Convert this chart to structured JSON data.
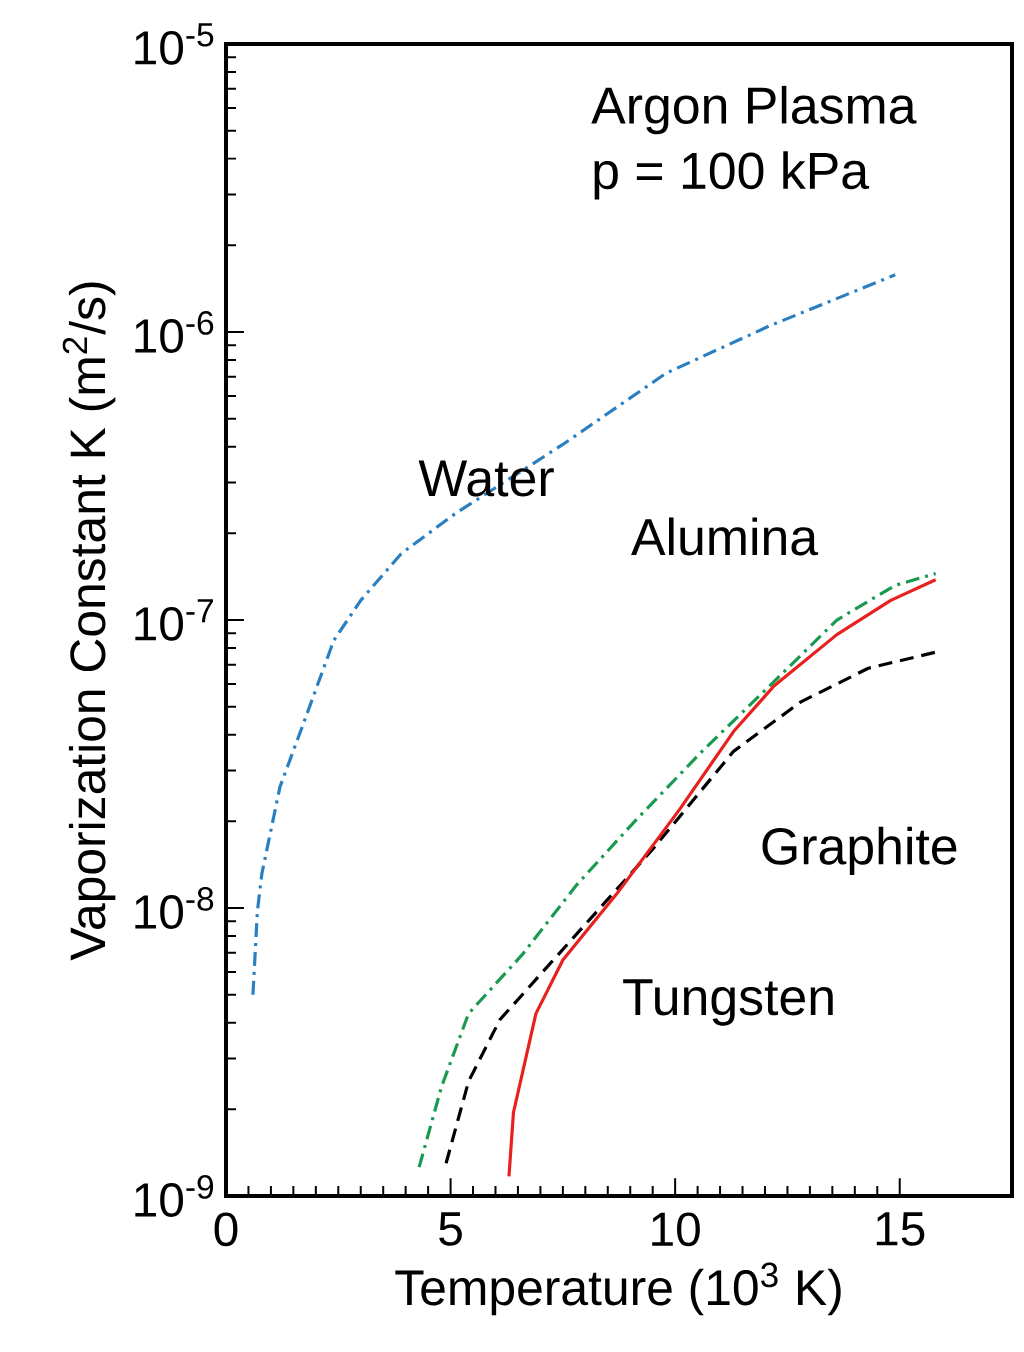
{
  "chart_data": {
    "type": "line",
    "xlabel": "Temperature (10$^{3}$ K)",
    "ylabel": "Vaporization Constant K (m$^{2}$/s)",
    "annotations": [
      "Argon Plasma",
      "p = 100 kPa"
    ],
    "log": "y",
    "xlim": [
      0,
      17.5
    ],
    "ylim": [
      1e-09,
      1e-05
    ],
    "xticks": [
      0,
      5,
      10,
      15
    ],
    "yticks": [
      {
        "value": 1e-09,
        "label": "10$^{-9}$"
      },
      {
        "value": 1e-08,
        "label": "10$^{-8}$"
      },
      {
        "value": 1e-07,
        "label": "10$^{-7}$"
      },
      {
        "value": 1e-06,
        "label": "10$^{-6}$"
      },
      {
        "value": 1e-05,
        "label": "10$^{-5}$"
      }
    ],
    "series": [
      {
        "name": "Water",
        "color": "#2a7fc1",
        "line_style": "dashdot",
        "x": [
          0.6,
          0.7,
          0.8,
          1.2,
          1.7,
          2.4,
          3.0,
          3.9,
          5.1,
          7.5,
          9.8,
          12.1,
          14.9
        ],
        "values": [
          5e-09,
          9.8e-09,
          1.32e-08,
          2.63e-08,
          4.27e-08,
          8.5e-08,
          1.17e-07,
          1.7e-07,
          2.34e-07,
          4.07e-07,
          7.2e-07,
          1.05e-06,
          1.58e-06
        ]
      },
      {
        "name": "Alumina",
        "color": "#1a9a50",
        "line_style": "dashdot",
        "x": [
          4.3,
          4.8,
          5.4,
          6.6,
          7.8,
          9.1,
          10.6,
          12.1,
          13.6,
          14.9,
          15.8
        ],
        "values": [
          1.26e-09,
          2.4e-09,
          4.3e-09,
          6.9e-09,
          1.2e-08,
          2e-08,
          3.5e-08,
          5.9e-08,
          1e-07,
          1.32e-07,
          1.45e-07
        ]
      },
      {
        "name": "Graphite",
        "color": "#000000",
        "line_style": "dashed",
        "x": [
          4.9,
          5.4,
          6.1,
          7.8,
          9.5,
          11.3,
          12.8,
          14.3,
          15.9
        ],
        "values": [
          1.3e-09,
          2.5e-09,
          4.1e-09,
          8.1e-09,
          1.6e-08,
          3.5e-08,
          5.2e-08,
          6.8e-08,
          7.8e-08
        ]
      },
      {
        "name": "Tungsten",
        "color": "#e8201e",
        "line_style": "solid",
        "x": [
          6.3,
          6.4,
          6.9,
          7.5,
          8.7,
          10.1,
          11.3,
          12.2,
          13.6,
          14.8,
          15.8
        ],
        "values": [
          1.17e-09,
          1.95e-09,
          4.3e-09,
          6.6e-09,
          1.12e-08,
          2.2e-08,
          4.1e-08,
          5.9e-08,
          8.9e-08,
          1.17e-07,
          1.38e-07
        ]
      }
    ]
  }
}
